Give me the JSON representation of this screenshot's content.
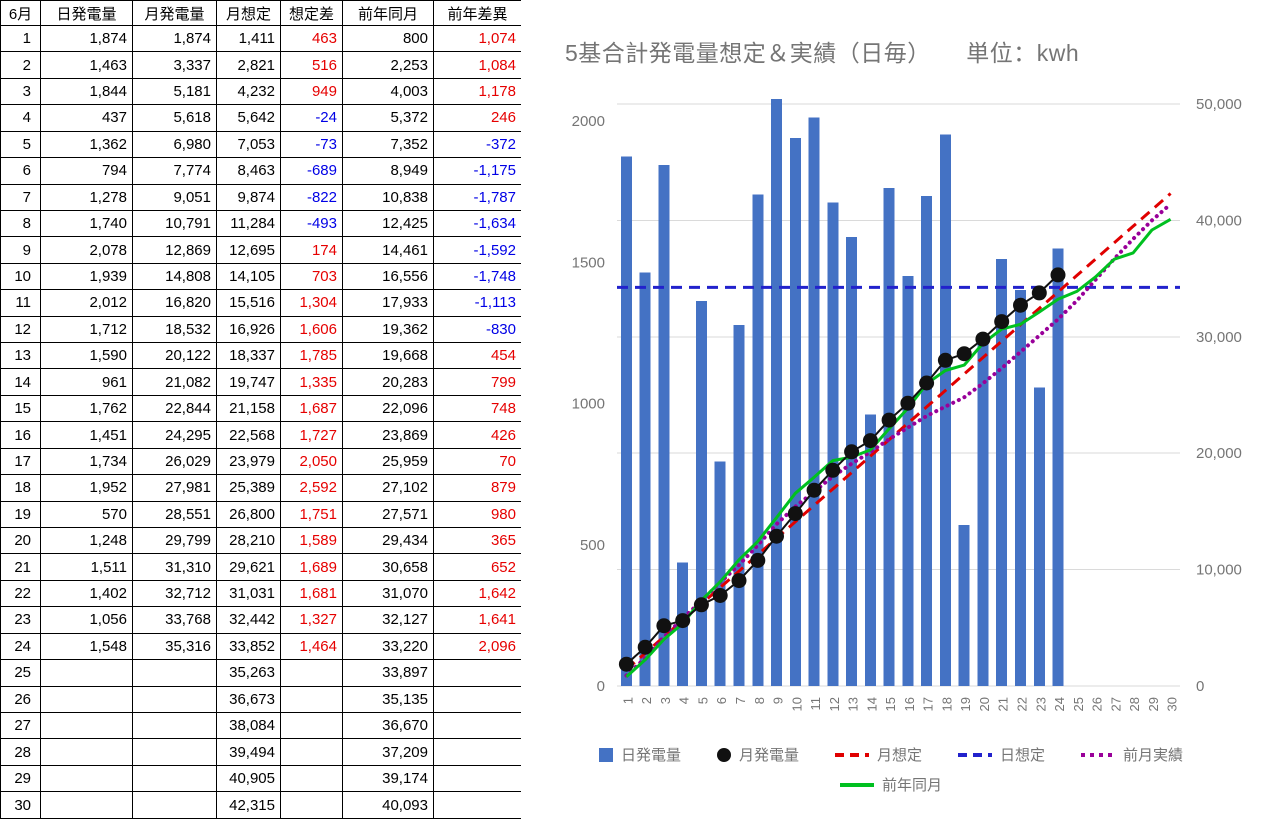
{
  "table": {
    "headers": [
      "6月",
      "日発電量",
      "月発電量",
      "月想定",
      "想定差",
      "前年同月",
      "前年差異"
    ],
    "column_keys": [
      "day",
      "daily-gen",
      "monthly-gen",
      "monthly-forecast",
      "forecast-diff",
      "prev-year-month",
      "prev-year-diff"
    ],
    "positive_color": "#e60000",
    "negative_color": "#0000e6",
    "rows": [
      [
        "1",
        "1,874",
        "1,874",
        "1,411",
        "463",
        "800",
        "1,074"
      ],
      [
        "2",
        "1,463",
        "3,337",
        "2,821",
        "516",
        "2,253",
        "1,084"
      ],
      [
        "3",
        "1,844",
        "5,181",
        "4,232",
        "949",
        "4,003",
        "1,178"
      ],
      [
        "4",
        "437",
        "5,618",
        "5,642",
        "-24",
        "5,372",
        "246"
      ],
      [
        "5",
        "1,362",
        "6,980",
        "7,053",
        "-73",
        "7,352",
        "-372"
      ],
      [
        "6",
        "794",
        "7,774",
        "8,463",
        "-689",
        "8,949",
        "-1,175"
      ],
      [
        "7",
        "1,278",
        "9,051",
        "9,874",
        "-822",
        "10,838",
        "-1,787"
      ],
      [
        "8",
        "1,740",
        "10,791",
        "11,284",
        "-493",
        "12,425",
        "-1,634"
      ],
      [
        "9",
        "2,078",
        "12,869",
        "12,695",
        "174",
        "14,461",
        "-1,592"
      ],
      [
        "10",
        "1,939",
        "14,808",
        "14,105",
        "703",
        "16,556",
        "-1,748"
      ],
      [
        "11",
        "2,012",
        "16,820",
        "15,516",
        "1,304",
        "17,933",
        "-1,113"
      ],
      [
        "12",
        "1,712",
        "18,532",
        "16,926",
        "1,606",
        "19,362",
        "-830"
      ],
      [
        "13",
        "1,590",
        "20,122",
        "18,337",
        "1,785",
        "19,668",
        "454"
      ],
      [
        "14",
        "961",
        "21,082",
        "19,747",
        "1,335",
        "20,283",
        "799"
      ],
      [
        "15",
        "1,762",
        "22,844",
        "21,158",
        "1,687",
        "22,096",
        "748"
      ],
      [
        "16",
        "1,451",
        "24,295",
        "22,568",
        "1,727",
        "23,869",
        "426"
      ],
      [
        "17",
        "1,734",
        "26,029",
        "23,979",
        "2,050",
        "25,959",
        "70"
      ],
      [
        "18",
        "1,952",
        "27,981",
        "25,389",
        "2,592",
        "27,102",
        "879"
      ],
      [
        "19",
        "570",
        "28,551",
        "26,800",
        "1,751",
        "27,571",
        "980"
      ],
      [
        "20",
        "1,248",
        "29,799",
        "28,210",
        "1,589",
        "29,434",
        "365"
      ],
      [
        "21",
        "1,511",
        "31,310",
        "29,621",
        "1,689",
        "30,658",
        "652"
      ],
      [
        "22",
        "1,402",
        "32,712",
        "31,031",
        "1,681",
        "31,070",
        "1,642"
      ],
      [
        "23",
        "1,056",
        "33,768",
        "32,442",
        "1,327",
        "32,127",
        "1,641"
      ],
      [
        "24",
        "1,548",
        "35,316",
        "33,852",
        "1,464",
        "33,220",
        "2,096"
      ],
      [
        "25",
        "",
        "",
        "35,263",
        "",
        "33,897",
        ""
      ],
      [
        "26",
        "",
        "",
        "36,673",
        "",
        "35,135",
        ""
      ],
      [
        "27",
        "",
        "",
        "38,084",
        "",
        "36,670",
        ""
      ],
      [
        "28",
        "",
        "",
        "39,494",
        "",
        "37,209",
        ""
      ],
      [
        "29",
        "",
        "",
        "40,905",
        "",
        "39,174",
        ""
      ],
      [
        "30",
        "",
        "",
        "42,315",
        "",
        "40,093",
        ""
      ]
    ]
  },
  "chart_data": {
    "type": "bar",
    "title": "5基合計発電量想定＆実績（日毎）　　単位：kwh",
    "title_color": "#757575",
    "axis_label_color": "#757575",
    "grid_color": "#dadada",
    "x": [
      1,
      2,
      3,
      4,
      5,
      6,
      7,
      8,
      9,
      10,
      11,
      12,
      13,
      14,
      15,
      16,
      17,
      18,
      19,
      20,
      21,
      22,
      23,
      24,
      25,
      26,
      27,
      28,
      29,
      30
    ],
    "left_axis": {
      "ticks": [
        0,
        500,
        1000,
        1500,
        2000
      ],
      "max": 2092
    },
    "right_axis": {
      "ticks": [
        0,
        10000,
        20000,
        30000,
        40000,
        50000
      ],
      "max": 50773
    },
    "legend_rows": [
      [
        0,
        1,
        2,
        3,
        4
      ],
      [
        5
      ]
    ],
    "series": [
      {
        "name": "日発電量",
        "type": "bar",
        "axis": "left",
        "color": "#4472c4",
        "swatch": "square",
        "z": 0,
        "values": [
          1874,
          1463,
          1844,
          437,
          1362,
          794,
          1278,
          1740,
          2078,
          1939,
          2012,
          1712,
          1590,
          961,
          1762,
          1451,
          1734,
          1952,
          570,
          1248,
          1511,
          1402,
          1056,
          1548,
          null,
          null,
          null,
          null,
          null,
          null
        ]
      },
      {
        "name": "月発電量",
        "type": "line",
        "dots": true,
        "axis": "right",
        "color": "#111111",
        "swatch": "circle",
        "z": 5,
        "width": 2,
        "values": [
          1874,
          3337,
          5181,
          5618,
          6980,
          7774,
          9051,
          10791,
          12869,
          14808,
          16820,
          18532,
          20122,
          21082,
          22844,
          24295,
          26029,
          27981,
          28551,
          29799,
          31310,
          32712,
          33768,
          35316,
          null,
          null,
          null,
          null,
          null,
          null
        ]
      },
      {
        "name": "月想定",
        "type": "line",
        "dash": "11 7",
        "axis": "right",
        "color": "#e00000",
        "swatch": "dash",
        "z": 1,
        "width": 3,
        "values": [
          1411,
          2821,
          4232,
          5642,
          7053,
          8463,
          9874,
          11284,
          12695,
          14105,
          15516,
          16926,
          18337,
          19747,
          21158,
          22568,
          23979,
          25389,
          26800,
          28210,
          29621,
          31031,
          32442,
          33852,
          35263,
          36673,
          38084,
          39494,
          40905,
          42315
        ]
      },
      {
        "name": "日想定",
        "type": "hline",
        "dash": "11 7",
        "axis": "left",
        "color": "#2222cc",
        "swatch": "dash",
        "z": 2,
        "width": 3,
        "value": 1411
      },
      {
        "name": "前月実績",
        "type": "line",
        "dash": "dot",
        "axis": "right",
        "color": "#990099",
        "swatch": "dot",
        "z": 3,
        "width": 3.5,
        "values": [
          900,
          2400,
          4200,
          5800,
          7300,
          8900,
          10400,
          12100,
          13900,
          15400,
          16700,
          18000,
          19100,
          20100,
          21200,
          22200,
          23200,
          24000,
          24800,
          26000,
          27300,
          28700,
          30100,
          31500,
          33100,
          34900,
          36700,
          38400,
          40000,
          41400
        ]
      },
      {
        "name": "前年同月",
        "type": "line",
        "axis": "right",
        "color": "#00c020",
        "swatch": "line",
        "z": 4,
        "width": 3,
        "values": [
          800,
          2253,
          4003,
          5372,
          7352,
          8949,
          10838,
          12425,
          14461,
          16556,
          17933,
          19362,
          19668,
          20283,
          22096,
          23869,
          25959,
          27102,
          27571,
          29434,
          30658,
          31070,
          32127,
          33220,
          33897,
          35135,
          36670,
          37209,
          39174,
          40093
        ]
      }
    ]
  }
}
